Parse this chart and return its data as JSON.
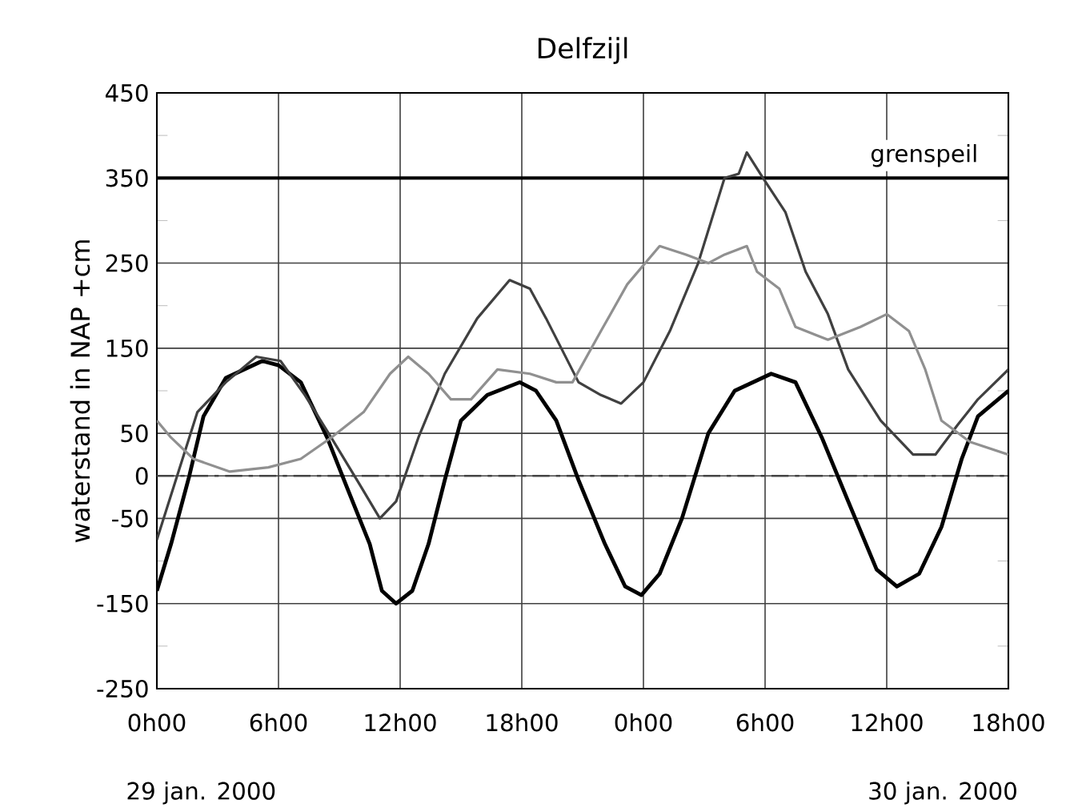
{
  "chart_data": {
    "type": "line",
    "title": "Delfzijl",
    "ylabel": "waterstand in NAP  +cm",
    "annotations": [
      "29 jan. 2000",
      "30 jan. 2000"
    ],
    "xlim": [
      "2000-01-29T00:00",
      "2000-01-30T18:00"
    ],
    "ylim": [
      -250,
      450
    ],
    "xticks": [
      {
        "value": "2000-01-29T00:00",
        "label": "0h00"
      },
      {
        "value": "2000-01-29T06:00",
        "label": "6h00"
      },
      {
        "value": "2000-01-29T12:00",
        "label": "12h00"
      },
      {
        "value": "2000-01-29T18:00",
        "label": "18h00"
      },
      {
        "value": "2000-01-30T00:00",
        "label": "0h00"
      },
      {
        "value": "2000-01-30T06:00",
        "label": "6h00"
      },
      {
        "value": "2000-01-30T12:00",
        "label": "12h00"
      },
      {
        "value": "2000-01-30T18:00",
        "label": "18h00"
      }
    ],
    "yticks": [
      -250,
      {
        "value": -200,
        "label": null
      },
      -150,
      {
        "value": -100,
        "label": null
      },
      -50,
      0,
      50,
      {
        "value": 100,
        "label": null
      },
      150,
      {
        "value": 200,
        "label": null
      },
      250,
      {
        "value": 300,
        "label": null
      },
      350,
      {
        "value": 400,
        "label": null
      },
      450
    ],
    "grid": true,
    "ref_lines": [
      {
        "axis": "y",
        "value": 350,
        "label": "grenspeil",
        "color": "#000000",
        "line_style": "solid"
      },
      {
        "axis": "y",
        "value": 0,
        "color": "#444444",
        "line_style": "dashed"
      }
    ],
    "series": [
      {
        "color": "#000000",
        "x": [
          "2000-01-29T00:00",
          "2000-01-29T00:42",
          "2000-01-29T01:36",
          "2000-01-29T02:18",
          "2000-01-29T03:24",
          "2000-01-29T05:12",
          "2000-01-29T06:00",
          "2000-01-29T07:06",
          "2000-01-29T08:24",
          "2000-01-29T09:24",
          "2000-01-29T10:30",
          "2000-01-29T11:06",
          "2000-01-29T11:48",
          "2000-01-29T12:36",
          "2000-01-29T13:24",
          "2000-01-29T14:12",
          "2000-01-29T15:00",
          "2000-01-29T16:18",
          "2000-01-29T17:54",
          "2000-01-29T18:42",
          "2000-01-29T19:42",
          "2000-01-29T20:48",
          "2000-01-29T22:06",
          "2000-01-29T23:06",
          "2000-01-29T23:54",
          "2000-01-30T00:48",
          "2000-01-30T01:54",
          "2000-01-30T03:12",
          "2000-01-30T04:30",
          "2000-01-30T06:18",
          "2000-01-30T07:30",
          "2000-01-30T08:48",
          "2000-01-30T10:06",
          "2000-01-30T11:30",
          "2000-01-30T12:30",
          "2000-01-30T13:36",
          "2000-01-30T14:42",
          "2000-01-30T15:42",
          "2000-01-30T16:30",
          "2000-01-30T18:00"
        ],
        "values": [
          -135,
          -80,
          0,
          70,
          115,
          135,
          130,
          110,
          45,
          -15,
          -80,
          -135,
          -150,
          -135,
          -80,
          -5,
          65,
          95,
          110,
          100,
          65,
          -5,
          -80,
          -130,
          -140,
          -115,
          -50,
          50,
          100,
          120,
          110,
          45,
          -30,
          -110,
          -130,
          -115,
          -60,
          20,
          70,
          100
        ]
      },
      {
        "color": "#404040",
        "x": [
          "2000-01-29T00:00",
          "2000-01-29T01:00",
          "2000-01-29T02:00",
          "2000-01-29T03:24",
          "2000-01-29T04:54",
          "2000-01-29T06:06",
          "2000-01-29T07:18",
          "2000-01-29T08:36",
          "2000-01-29T10:00",
          "2000-01-29T11:00",
          "2000-01-29T11:48",
          "2000-01-29T12:54",
          "2000-01-29T14:12",
          "2000-01-29T15:48",
          "2000-01-29T17:24",
          "2000-01-29T18:24",
          "2000-01-29T19:12",
          "2000-01-29T20:48",
          "2000-01-29T21:54",
          "2000-01-29T22:54",
          "2000-01-30T00:00",
          "2000-01-30T01:18",
          "2000-01-30T02:42",
          "2000-01-30T04:00",
          "2000-01-30T04:42",
          "2000-01-30T05:06",
          "2000-01-30T05:54",
          "2000-01-30T07:00",
          "2000-01-30T08:00",
          "2000-01-30T09:06",
          "2000-01-30T10:06",
          "2000-01-30T11:42",
          "2000-01-30T13:18",
          "2000-01-30T14:24",
          "2000-01-30T15:30",
          "2000-01-30T16:30",
          "2000-01-30T18:00"
        ],
        "values": [
          -75,
          0,
          75,
          110,
          140,
          135,
          95,
          45,
          -10,
          -50,
          -30,
          45,
          120,
          185,
          230,
          220,
          185,
          110,
          95,
          85,
          110,
          170,
          250,
          350,
          355,
          380,
          350,
          310,
          240,
          190,
          125,
          65,
          25,
          25,
          60,
          90,
          125
        ]
      },
      {
        "color": "#909090",
        "x": [
          "2000-01-29T00:00",
          "2000-01-29T00:42",
          "2000-01-29T01:48",
          "2000-01-29T03:36",
          "2000-01-29T05:30",
          "2000-01-29T07:06",
          "2000-01-29T08:36",
          "2000-01-29T10:12",
          "2000-01-29T11:30",
          "2000-01-29T12:24",
          "2000-01-29T13:24",
          "2000-01-29T14:30",
          "2000-01-29T15:30",
          "2000-01-29T16:48",
          "2000-01-29T18:24",
          "2000-01-29T19:42",
          "2000-01-29T20:30",
          "2000-01-29T21:54",
          "2000-01-29T23:12",
          "2000-01-30T00:48",
          "2000-01-30T02:06",
          "2000-01-30T03:12",
          "2000-01-30T04:00",
          "2000-01-30T05:06",
          "2000-01-30T05:36",
          "2000-01-30T06:42",
          "2000-01-30T07:30",
          "2000-01-30T09:06",
          "2000-01-30T10:42",
          "2000-01-30T12:00",
          "2000-01-30T13:06",
          "2000-01-30T13:54",
          "2000-01-30T14:42",
          "2000-01-30T16:06",
          "2000-01-30T18:00"
        ],
        "values": [
          65,
          45,
          20,
          5,
          10,
          20,
          45,
          75,
          120,
          140,
          120,
          90,
          90,
          125,
          120,
          110,
          110,
          170,
          225,
          270,
          260,
          250,
          260,
          270,
          240,
          220,
          175,
          160,
          175,
          190,
          170,
          125,
          65,
          40,
          25
        ]
      }
    ]
  }
}
